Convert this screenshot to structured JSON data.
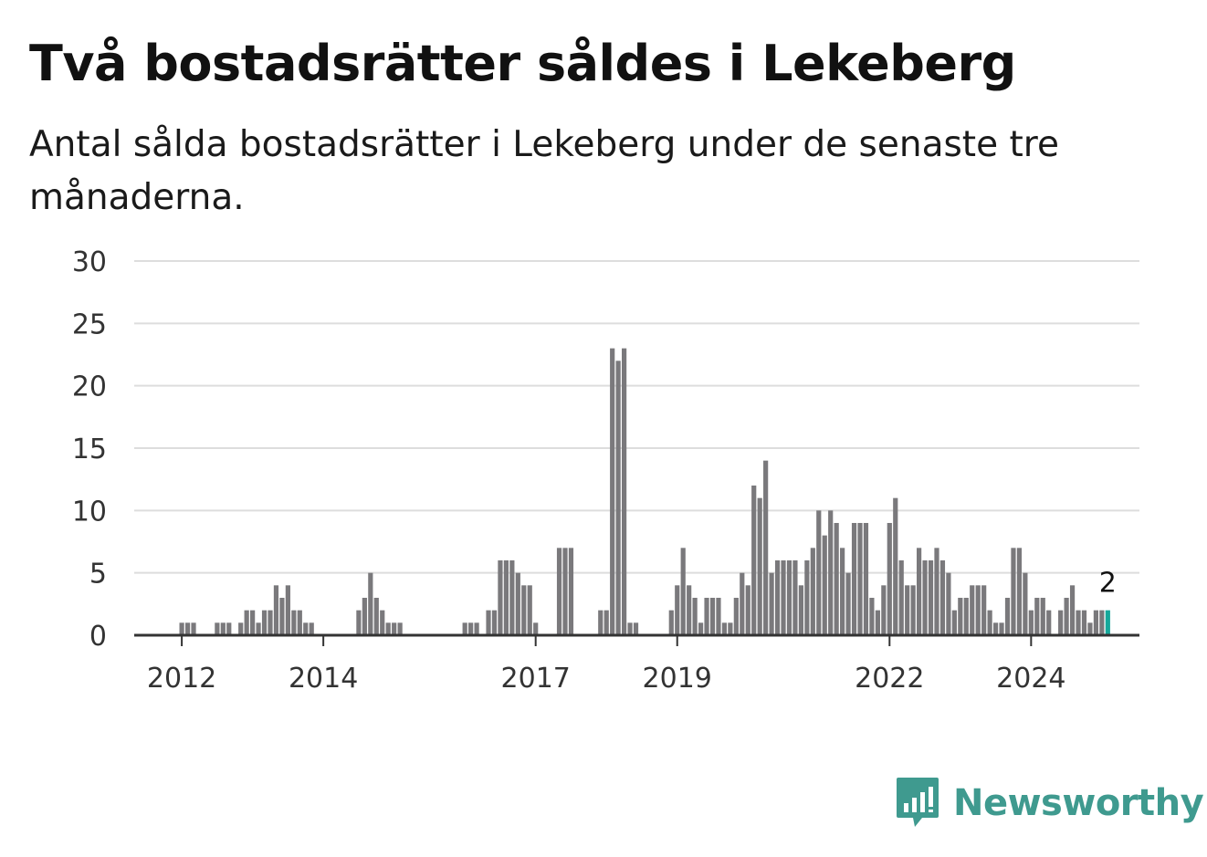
{
  "title": "Två bostadsrätter såldes i Lekeberg",
  "subtitle": "Antal sålda bostadsrätter i Lekeberg under de senaste tre månaderna.",
  "brand": {
    "name": "Newsworthy",
    "color": "#3f9a8f",
    "icon": "newsworthy-logo-icon"
  },
  "colors": {
    "bar": "#7a797c",
    "highlight": "#16a89b",
    "grid": "#dddddd",
    "axis": "#333333"
  },
  "chart_data": {
    "type": "bar",
    "first_period": "2012-01",
    "ylim": [
      0,
      30
    ],
    "yticks": [
      0,
      5,
      10,
      15,
      20,
      25,
      30
    ],
    "xticks": [
      {
        "label": "2012",
        "index": 0
      },
      {
        "label": "2014",
        "index": 24
      },
      {
        "label": "2017",
        "index": 60
      },
      {
        "label": "2019",
        "index": 84
      },
      {
        "label": "2022",
        "index": 120
      },
      {
        "label": "2024",
        "index": 144
      }
    ],
    "values": [
      1,
      1,
      1,
      0,
      0,
      0,
      1,
      1,
      1,
      0,
      1,
      2,
      2,
      1,
      2,
      2,
      4,
      3,
      4,
      2,
      2,
      1,
      1,
      0,
      0,
      0,
      0,
      0,
      0,
      0,
      2,
      3,
      5,
      3,
      2,
      1,
      1,
      1,
      0,
      0,
      0,
      0,
      0,
      0,
      0,
      0,
      0,
      0,
      1,
      1,
      1,
      0,
      2,
      2,
      6,
      6,
      6,
      5,
      4,
      4,
      1,
      0,
      0,
      0,
      7,
      7,
      7,
      0,
      0,
      0,
      0,
      2,
      2,
      23,
      22,
      23,
      1,
      1,
      0,
      0,
      0,
      0,
      0,
      2,
      4,
      7,
      4,
      3,
      1,
      3,
      3,
      3,
      1,
      1,
      3,
      5,
      4,
      12,
      11,
      14,
      5,
      6,
      6,
      6,
      6,
      4,
      6,
      7,
      10,
      8,
      10,
      9,
      7,
      5,
      9,
      9,
      9,
      3,
      2,
      4,
      9,
      11,
      6,
      4,
      4,
      7,
      6,
      6,
      7,
      6,
      5,
      2,
      3,
      3,
      4,
      4,
      4,
      2,
      1,
      1,
      3,
      7,
      7,
      5,
      2,
      3,
      3,
      2,
      0,
      2,
      3,
      4,
      2,
      2,
      1,
      2,
      2,
      2
    ],
    "highlight_last": true,
    "annotation": "2"
  }
}
